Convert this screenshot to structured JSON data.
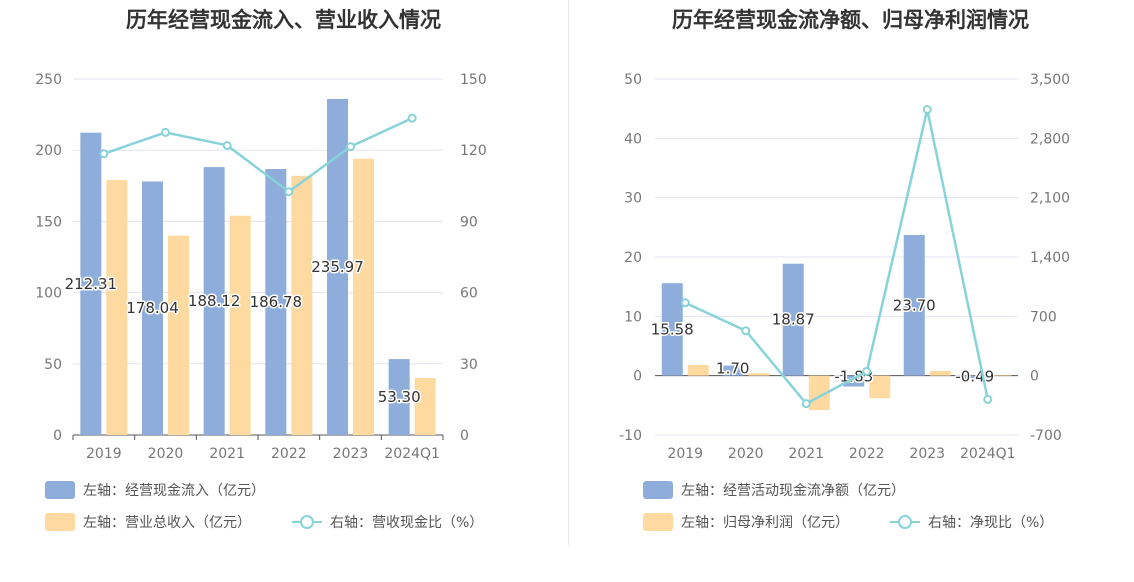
{
  "colors": {
    "bar1": "#8eaddb",
    "bar2": "#fed9a0",
    "line": "#88d3d9",
    "grid": "#e3e3ef",
    "axis": "#555555"
  },
  "charts": [
    {
      "title": "历年经营现金流入、营业收入情况",
      "legend": {
        "bar1": "左轴：经营现金流入（亿元）",
        "bar2": "左轴：营业总收入（亿元）",
        "line": "右轴：营收现金比（%）"
      }
    },
    {
      "title": "历年经营现金流净额、归母净利润情况",
      "legend": {
        "bar1": "左轴：经营活动现金流净额（亿元）",
        "bar2": "左轴：归母净利润（亿元）",
        "line": "右轴：净现比（%）"
      }
    }
  ],
  "chart_data": [
    {
      "type": "bar",
      "title": "历年经营现金流入、营业收入情况",
      "categories": [
        "2019",
        "2020",
        "2021",
        "2022",
        "2023",
        "2024Q1"
      ],
      "left_axis": {
        "ylim": [
          0,
          250
        ],
        "ticks": [
          "0",
          "50",
          "100",
          "150",
          "200",
          "250"
        ]
      },
      "right_axis": {
        "ylim": [
          0,
          150
        ],
        "ticks": [
          "0",
          "30",
          "60",
          "90",
          "120",
          "150"
        ]
      },
      "grid": true,
      "legend_position": "bottom",
      "series": [
        {
          "name": "左轴：经营现金流入（亿元）",
          "type": "bar",
          "axis": "left",
          "values": [
            212.31,
            178.04,
            188.12,
            186.78,
            235.97,
            53.3
          ],
          "labels": [
            "212.31",
            "178.04",
            "188.12",
            "186.78",
            "235.97",
            "53.30"
          ]
        },
        {
          "name": "左轴：营业总收入（亿元）",
          "type": "bar",
          "axis": "left",
          "values": [
            179,
            140,
            154,
            182,
            194,
            40
          ]
        },
        {
          "name": "右轴：营收现金比（%）",
          "type": "line",
          "axis": "right",
          "values": [
            118.5,
            127.5,
            122,
            102.5,
            121.5,
            133.5
          ]
        }
      ]
    },
    {
      "type": "bar",
      "title": "历年经营现金流净额、归母净利润情况",
      "categories": [
        "2019",
        "2020",
        "2021",
        "2022",
        "2023",
        "2024Q1"
      ],
      "left_axis": {
        "ylim": [
          -10,
          50
        ],
        "ticks": [
          "-10",
          "0",
          "10",
          "20",
          "30",
          "40",
          "50"
        ]
      },
      "right_axis": {
        "ylim": [
          -700,
          3500
        ],
        "ticks": [
          "-700",
          "0",
          "700",
          "1,400",
          "2,100",
          "2,800",
          "3,500"
        ]
      },
      "grid": true,
      "legend_position": "bottom",
      "series": [
        {
          "name": "左轴：经营活动现金流净额（亿元）",
          "type": "bar",
          "axis": "left",
          "values": [
            15.58,
            1.7,
            18.87,
            -1.83,
            23.7,
            -0.49
          ],
          "labels": [
            "15.58",
            "1.70",
            "18.87",
            "-1.83",
            "23.70",
            "-0.49"
          ]
        },
        {
          "name": "左轴：归母净利润（亿元）",
          "type": "bar",
          "axis": "left",
          "values": [
            1.8,
            0.4,
            -5.8,
            -3.8,
            0.8,
            0.1
          ]
        },
        {
          "name": "右轴：净现比（%）",
          "type": "line",
          "axis": "right",
          "values": [
            860,
            530,
            -330,
            50,
            3140,
            -280
          ]
        }
      ]
    }
  ]
}
